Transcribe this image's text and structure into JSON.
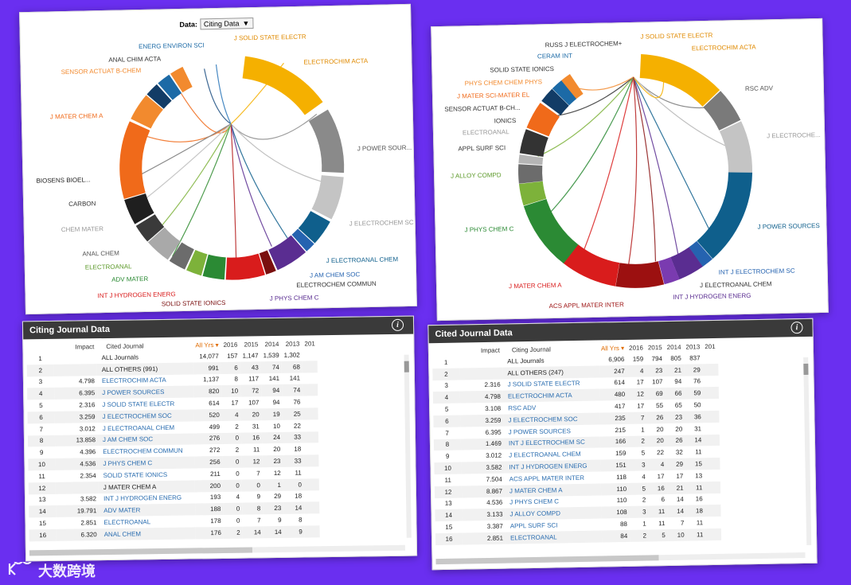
{
  "chord1": {
    "data_label": "Data:",
    "data_value": "Citing Data",
    "data_caret": "▼",
    "labels": [
      "J SOLID STATE ELECTR",
      "ELECTROCHIM ACTA",
      "J POWER SOUR...",
      "J ELECTROCHEM SC",
      "J ELECTROANAL CHEM",
      "J AM CHEM SOC",
      "ELECTROCHEM COMMUN",
      "J PHYS CHEM C",
      "SOLID STATE IONICS",
      "INT J HYDROGEN ENERG",
      "ADV MATER",
      "ELECTROANAL",
      "ANAL CHEM",
      "CHEM MATER",
      "CARBON",
      "BIOSENS BIOEL...",
      "J MATER CHEM A",
      "SENSOR ACTUAT B-CHEM",
      "ANAL CHIM ACTA",
      "ENERG ENVIRON SCI"
    ]
  },
  "chord2": {
    "labels": [
      "J SOLID STATE ELECTR",
      "ELECTROCHIM ACTA",
      "RSC ADV",
      "J ELECTROCHE...",
      "J POWER SOURCES",
      "INT J ELECTROCHEM SC",
      "J ELECTROANAL CHEM",
      "INT J HYDROGEN ENERG",
      "ACS APPL MATER INTER",
      "J MATER CHEM A",
      "J PHYS CHEM C",
      "J ALLOY COMPD",
      "APPL SURF SCI",
      "ELECTROANAL",
      "IONICS",
      "SENSOR ACTUAT B-CH...",
      "J MATER SCI-MATER EL",
      "PHYS CHEM CHEM PHYS",
      "SOLID STATE IONICS",
      "CERAM INT",
      "RUSS J ELECTROCHEM+"
    ]
  },
  "table1": {
    "title": "Citing Journal Data",
    "info": "i",
    "headers": {
      "impact": "Impact",
      "journal": "Cited Journal",
      "allyrs": "All Yrs ▾",
      "y2016": "2016",
      "y2015": "2015",
      "y2014": "2014",
      "y2013": "2013",
      "y201": "201"
    },
    "rows": [
      {
        "rank": "1",
        "impact": "",
        "journal": "ALL Journals",
        "all": "14,077",
        "y2016": "157",
        "y2015": "1,147",
        "y2014": "1,539",
        "y2013": "1,302",
        "plain": true
      },
      {
        "rank": "2",
        "impact": "",
        "journal": "ALL OTHERS (991)",
        "all": "991",
        "y2016": "6",
        "y2015": "43",
        "y2014": "74",
        "y2013": "68",
        "plain": true
      },
      {
        "rank": "3",
        "impact": "4.798",
        "journal": "ELECTROCHIM ACTA",
        "all": "1,137",
        "y2016": "8",
        "y2015": "117",
        "y2014": "141",
        "y2013": "141"
      },
      {
        "rank": "4",
        "impact": "6.395",
        "journal": "J POWER SOURCES",
        "all": "820",
        "y2016": "10",
        "y2015": "72",
        "y2014": "94",
        "y2013": "74"
      },
      {
        "rank": "5",
        "impact": "2.316",
        "journal": "J SOLID STATE ELECTR",
        "all": "614",
        "y2016": "17",
        "y2015": "107",
        "y2014": "94",
        "y2013": "76"
      },
      {
        "rank": "6",
        "impact": "3.259",
        "journal": "J ELECTROCHEM SOC",
        "all": "520",
        "y2016": "4",
        "y2015": "20",
        "y2014": "19",
        "y2013": "25"
      },
      {
        "rank": "7",
        "impact": "3.012",
        "journal": "J ELECTROANAL CHEM",
        "all": "499",
        "y2016": "2",
        "y2015": "31",
        "y2014": "10",
        "y2013": "22"
      },
      {
        "rank": "8",
        "impact": "13.858",
        "journal": "J AM CHEM SOC",
        "all": "276",
        "y2016": "0",
        "y2015": "16",
        "y2014": "24",
        "y2013": "33"
      },
      {
        "rank": "9",
        "impact": "4.396",
        "journal": "ELECTROCHEM COMMUN",
        "all": "272",
        "y2016": "2",
        "y2015": "11",
        "y2014": "20",
        "y2013": "18"
      },
      {
        "rank": "10",
        "impact": "4.536",
        "journal": "J PHYS CHEM C",
        "all": "256",
        "y2016": "0",
        "y2015": "12",
        "y2014": "23",
        "y2013": "33"
      },
      {
        "rank": "11",
        "impact": "2.354",
        "journal": "SOLID STATE IONICS",
        "all": "211",
        "y2016": "0",
        "y2015": "7",
        "y2014": "12",
        "y2013": "11"
      },
      {
        "rank": "12",
        "impact": "",
        "journal": "J MATER CHEM A",
        "all": "200",
        "y2016": "0",
        "y2015": "0",
        "y2014": "1",
        "y2013": "0",
        "plain": true
      },
      {
        "rank": "13",
        "impact": "3.582",
        "journal": "INT J HYDROGEN ENERG",
        "all": "193",
        "y2016": "4",
        "y2015": "9",
        "y2014": "29",
        "y2013": "18"
      },
      {
        "rank": "14",
        "impact": "19.791",
        "journal": "ADV MATER",
        "all": "188",
        "y2016": "0",
        "y2015": "8",
        "y2014": "23",
        "y2013": "14"
      },
      {
        "rank": "15",
        "impact": "2.851",
        "journal": "ELECTROANAL",
        "all": "178",
        "y2016": "0",
        "y2015": "7",
        "y2014": "9",
        "y2013": "8"
      },
      {
        "rank": "16",
        "impact": "6.320",
        "journal": "ANAL CHEM",
        "all": "176",
        "y2016": "2",
        "y2015": "14",
        "y2014": "14",
        "y2013": "9"
      }
    ]
  },
  "table2": {
    "title": "Cited Journal Data",
    "info": "i",
    "headers": {
      "impact": "Impact",
      "journal": "Citing Journal",
      "allyrs": "All Yrs ▾",
      "y2016": "2016",
      "y2015": "2015",
      "y2014": "2014",
      "y2013": "2013",
      "y201": "201"
    },
    "rows": [
      {
        "rank": "1",
        "impact": "",
        "journal": "ALL Journals",
        "all": "6,906",
        "y2016": "159",
        "y2015": "794",
        "y2014": "805",
        "y2013": "837",
        "plain": true
      },
      {
        "rank": "2",
        "impact": "",
        "journal": "ALL OTHERS (247)",
        "all": "247",
        "y2016": "4",
        "y2015": "23",
        "y2014": "21",
        "y2013": "29",
        "plain": true
      },
      {
        "rank": "3",
        "impact": "2.316",
        "journal": "J SOLID STATE ELECTR",
        "all": "614",
        "y2016": "17",
        "y2015": "107",
        "y2014": "94",
        "y2013": "76"
      },
      {
        "rank": "4",
        "impact": "4.798",
        "journal": "ELECTROCHIM ACTA",
        "all": "480",
        "y2016": "12",
        "y2015": "69",
        "y2014": "66",
        "y2013": "59"
      },
      {
        "rank": "5",
        "impact": "3.108",
        "journal": "RSC ADV",
        "all": "417",
        "y2016": "17",
        "y2015": "55",
        "y2014": "65",
        "y2013": "50"
      },
      {
        "rank": "6",
        "impact": "3.259",
        "journal": "J ELECTROCHEM SOC",
        "all": "235",
        "y2016": "7",
        "y2015": "26",
        "y2014": "23",
        "y2013": "36"
      },
      {
        "rank": "7",
        "impact": "6.395",
        "journal": "J POWER SOURCES",
        "all": "215",
        "y2016": "1",
        "y2015": "20",
        "y2014": "20",
        "y2013": "31"
      },
      {
        "rank": "8",
        "impact": "1.469",
        "journal": "INT J ELECTROCHEM SC",
        "all": "166",
        "y2016": "2",
        "y2015": "20",
        "y2014": "26",
        "y2013": "14"
      },
      {
        "rank": "9",
        "impact": "3.012",
        "journal": "J ELECTROANAL CHEM",
        "all": "159",
        "y2016": "5",
        "y2015": "22",
        "y2014": "32",
        "y2013": "11"
      },
      {
        "rank": "10",
        "impact": "3.582",
        "journal": "INT J HYDROGEN ENERG",
        "all": "151",
        "y2016": "3",
        "y2015": "4",
        "y2014": "29",
        "y2013": "15"
      },
      {
        "rank": "11",
        "impact": "7.504",
        "journal": "ACS APPL MATER INTER",
        "all": "118",
        "y2016": "4",
        "y2015": "17",
        "y2014": "17",
        "y2013": "13"
      },
      {
        "rank": "12",
        "impact": "8.867",
        "journal": "J MATER CHEM A",
        "all": "110",
        "y2016": "5",
        "y2015": "16",
        "y2014": "21",
        "y2013": "11"
      },
      {
        "rank": "13",
        "impact": "4.536",
        "journal": "J PHYS CHEM C",
        "all": "110",
        "y2016": "2",
        "y2015": "6",
        "y2014": "14",
        "y2013": "16"
      },
      {
        "rank": "14",
        "impact": "3.133",
        "journal": "J ALLOY COMPD",
        "all": "108",
        "y2016": "3",
        "y2015": "11",
        "y2014": "14",
        "y2013": "18"
      },
      {
        "rank": "15",
        "impact": "3.387",
        "journal": "APPL SURF SCI",
        "all": "88",
        "y2016": "1",
        "y2015": "11",
        "y2014": "7",
        "y2013": "11"
      },
      {
        "rank": "16",
        "impact": "2.851",
        "journal": "ELECTROANAL",
        "all": "84",
        "y2016": "2",
        "y2015": "5",
        "y2014": "10",
        "y2013": "11"
      }
    ]
  },
  "watermark": "大数跨境"
}
